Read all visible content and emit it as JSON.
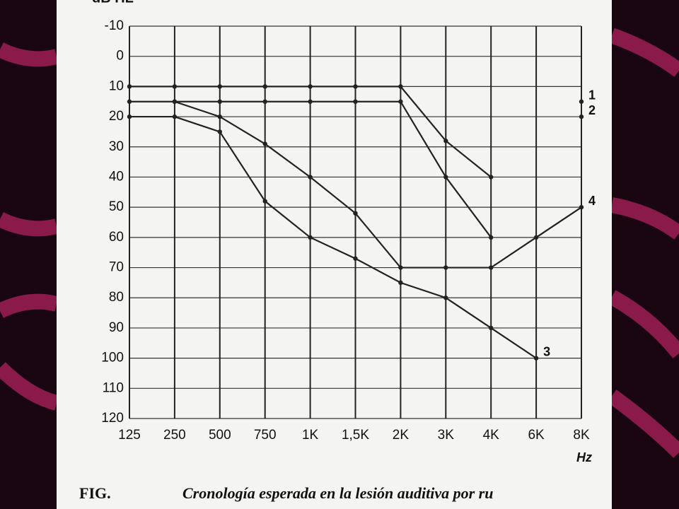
{
  "chart_data": {
    "type": "line",
    "y_label": "dB HL",
    "x_label": "Hz",
    "caption_prefix": "FIG.",
    "caption": "Cronología esperada en la lesión auditiva por ru",
    "categories": [
      "125",
      "250",
      "500",
      "750",
      "1K",
      "1,5K",
      "2K",
      "3K",
      "4K",
      "6K",
      "8K"
    ],
    "ylim": [
      -10,
      120
    ],
    "y_inverted": true,
    "yticks": [
      -10,
      0,
      10,
      20,
      30,
      40,
      50,
      60,
      70,
      80,
      90,
      100,
      110,
      120
    ],
    "grid": true,
    "series": [
      {
        "name": "1",
        "color": "#222222",
        "values": [
          10,
          10,
          10,
          10,
          10,
          10,
          10,
          28,
          40,
          null,
          15
        ]
      },
      {
        "name": "2",
        "color": "#222222",
        "values": [
          15,
          15,
          15,
          15,
          15,
          15,
          15,
          40,
          60,
          null,
          20
        ]
      },
      {
        "name": "3",
        "color": "#222222",
        "values": [
          20,
          20,
          25,
          48,
          60,
          67,
          75,
          80,
          90,
          100,
          null
        ]
      },
      {
        "name": "4",
        "color": "#222222",
        "values": [
          null,
          15,
          20,
          29,
          40,
          52,
          70,
          70,
          70,
          60,
          50
        ]
      }
    ]
  }
}
